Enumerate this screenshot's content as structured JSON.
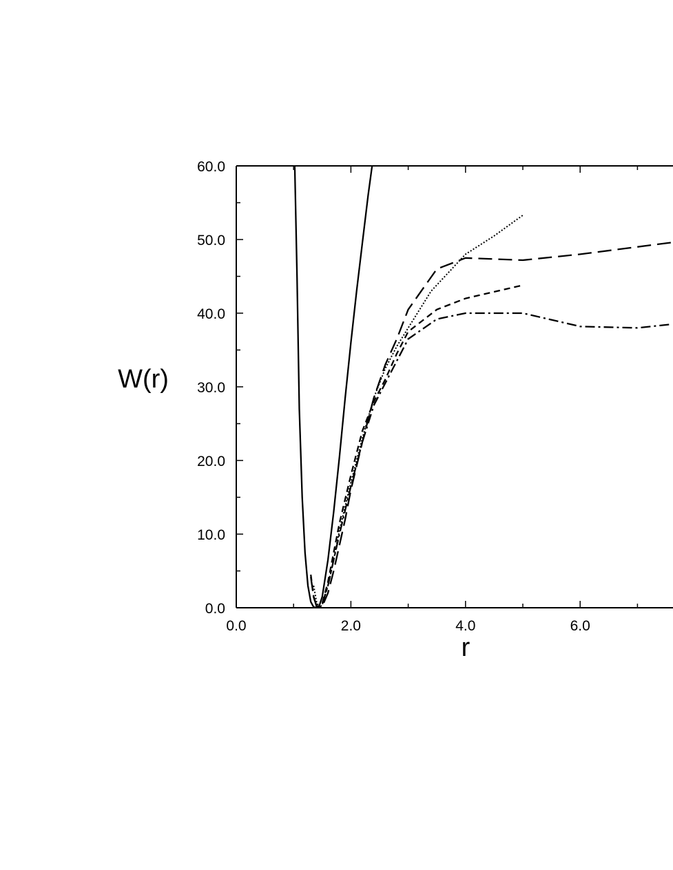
{
  "chart_data": {
    "type": "line",
    "title": "",
    "xlabel": "r",
    "ylabel": "W(r)",
    "xlim": [
      0,
      8
    ],
    "ylim": [
      0,
      60
    ],
    "x_major_ticks": [
      0,
      2,
      4,
      6
    ],
    "x_tick_labels": [
      "0.0",
      "2.0",
      "4.0",
      "6.0"
    ],
    "y_major_ticks": [
      0,
      10,
      20,
      30,
      40,
      50,
      60
    ],
    "y_tick_labels": [
      "0.0",
      "10.0",
      "20.0",
      "30.0",
      "40.0",
      "50.0",
      "60.0"
    ],
    "grid": false,
    "legend": "none",
    "series": [
      {
        "style": "solid",
        "x": [
          1.02,
          1.06,
          1.1,
          1.15,
          1.2,
          1.25,
          1.3,
          1.35,
          1.4,
          1.45,
          1.5,
          1.6,
          1.7,
          1.8,
          1.9,
          2.0,
          2.1,
          2.2,
          2.3,
          2.37
        ],
        "y": [
          60,
          45,
          27,
          15,
          7.5,
          3,
          0.8,
          0.1,
          0,
          0.3,
          1.5,
          6.5,
          13,
          20.5,
          28.5,
          36,
          43,
          49.5,
          56,
          60
        ]
      },
      {
        "style": "long-dash",
        "x": [
          1.3,
          1.35,
          1.4,
          1.45,
          1.5,
          1.6,
          1.7,
          1.8,
          1.9,
          2.0,
          2.2,
          2.4,
          2.6,
          2.8,
          3.0,
          3.5,
          4.0,
          5.0,
          6.0,
          7.0,
          8.0
        ],
        "y": [
          4.2,
          1.5,
          0.3,
          0,
          0.2,
          2,
          5,
          8.5,
          12,
          16,
          22.5,
          28.5,
          33,
          36.5,
          40.5,
          46,
          47.5,
          47.2,
          48,
          49,
          50
        ]
      },
      {
        "style": "dotted",
        "x": [
          1.35,
          1.4,
          1.45,
          1.5,
          1.6,
          1.7,
          1.8,
          2.0,
          2.2,
          2.4,
          2.6,
          2.8,
          3.0,
          3.4,
          4.0,
          4.5,
          5.0
        ],
        "y": [
          3,
          0.8,
          0,
          0.4,
          3,
          6.5,
          10.5,
          17,
          23,
          28.5,
          32.5,
          35.5,
          38,
          43,
          48,
          50.5,
          53.3
        ]
      },
      {
        "style": "short-dash",
        "x": [
          1.3,
          1.35,
          1.4,
          1.45,
          1.5,
          1.6,
          1.7,
          1.8,
          2.0,
          2.2,
          2.4,
          2.6,
          2.8,
          3.0,
          3.5,
          4.0,
          5.0
        ],
        "y": [
          4.5,
          1.5,
          0.2,
          0,
          0.6,
          3.5,
          7.5,
          11.5,
          18,
          24,
          28,
          31,
          34.5,
          37.5,
          40.5,
          42,
          43.8
        ]
      },
      {
        "style": "dash-dot",
        "x": [
          1.35,
          1.4,
          1.45,
          1.5,
          1.6,
          1.7,
          1.8,
          2.0,
          2.2,
          2.4,
          2.6,
          2.8,
          3.0,
          3.5,
          4.0,
          5.0,
          6.0,
          7.0,
          7.6
        ],
        "y": [
          1.5,
          0.2,
          0,
          0.5,
          3,
          6.5,
          10,
          16.5,
          22.5,
          27.5,
          30.5,
          33.5,
          36.5,
          39.2,
          40,
          40,
          38.2,
          38,
          38.5
        ]
      }
    ]
  }
}
